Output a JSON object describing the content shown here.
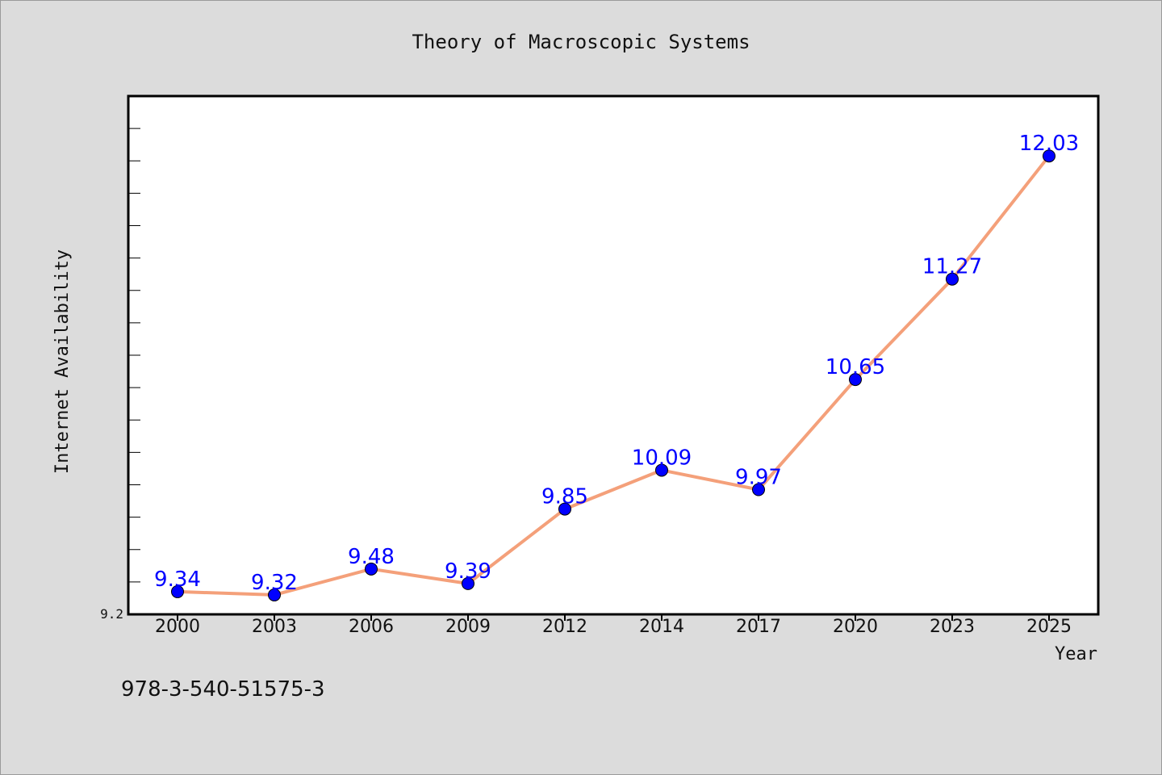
{
  "chart_data": {
    "type": "line",
    "title": "Theory of Macroscopic Systems",
    "xlabel": "Year",
    "ylabel": "Internet Availability",
    "x": [
      "2000",
      "2003",
      "2006",
      "2009",
      "2012",
      "2014",
      "2017",
      "2020",
      "2023",
      "2025"
    ],
    "series": [
      {
        "values": [
          9.34,
          9.32,
          9.48,
          9.39,
          9.85,
          10.09,
          9.97,
          10.65,
          11.27,
          12.03
        ]
      }
    ],
    "ylim": [
      9.2,
      12.4
    ],
    "y_tick_labels": [
      "9.2"
    ],
    "grid": false,
    "legend": "none",
    "annotation": "978-3-540-51575-3",
    "colors": {
      "background": "#dcdcdc",
      "plot_area": "#ffffff",
      "line": "#f4a07a",
      "marker": "#0000ff",
      "data_label": "#0000ff",
      "text": "#111111"
    }
  }
}
